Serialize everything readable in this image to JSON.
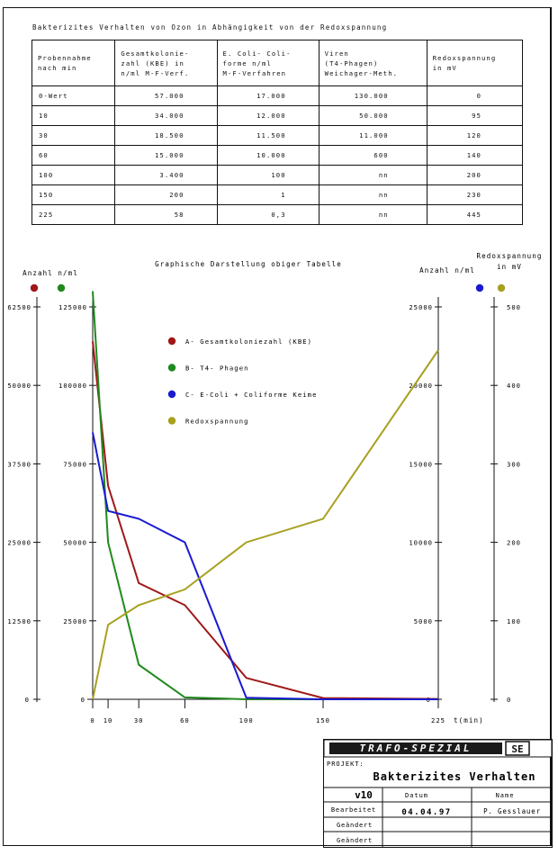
{
  "table": {
    "title": "Bakterizites Verhalten von Ozon in Abhängigkeit von der Redoxspannung",
    "headers": [
      [
        "Probennahme",
        "nach min"
      ],
      [
        "Gesamtkolonie-",
        "zahl (KBE) in",
        "n/ml M-F-Verf."
      ],
      [
        "E. Coli- Coli-",
        "forme n/ml",
        "M-F-Verfahren"
      ],
      [
        "Viren",
        "(T4-Phagen)",
        "Weichager-Meth."
      ],
      [
        "Redoxspannung",
        "in mV"
      ]
    ],
    "rows": [
      [
        "0-Wert",
        "57.000",
        "17.000",
        "130.000",
        "0"
      ],
      [
        "10",
        "34.000",
        "12.000",
        "50.000",
        "95"
      ],
      [
        "30",
        "18.500",
        "11.500",
        "11.000",
        "120"
      ],
      [
        "60",
        "15.000",
        "10.000",
        "600",
        "140"
      ],
      [
        "100",
        "3.400",
        "100",
        "nn",
        "200"
      ],
      [
        "150",
        "200",
        "1",
        "nn",
        "230"
      ],
      [
        "225",
        "58",
        "0,3",
        "nn",
        "445"
      ]
    ]
  },
  "chart": {
    "title": "Graphische Darstellung obiger Tabelle",
    "left_label": "Anzahl n/ml",
    "right_label": "Anzahl n/ml",
    "redox_label": [
      "Redoxspannung",
      "in mV"
    ],
    "x_unit": "t(min)",
    "x_ticks": [
      "0",
      "10",
      "30",
      "60",
      "100",
      "150",
      "225"
    ],
    "axis1_ticks": [
      "62500",
      "50000",
      "37500",
      "25000",
      "12500",
      "0"
    ],
    "axis2_ticks": [
      "125000",
      "100000",
      "75000",
      "50000",
      "25000",
      "0"
    ],
    "axis3_ticks": [
      "25000",
      "20000",
      "15000",
      "10000",
      "5000",
      "0"
    ],
    "axis4_ticks": [
      "500",
      "400",
      "300",
      "200",
      "100",
      "0"
    ],
    "legend": [
      {
        "label": "A- Gesamtkoloniezahl (KBE)",
        "color": "#a01818"
      },
      {
        "label": "B- T4- Phagen",
        "color": "#1e8a1e"
      },
      {
        "label": "C- E-Coli + Coliforme Keime",
        "color": "#1a1ad0"
      },
      {
        "label": "Redoxspannung",
        "color": "#a8a020"
      }
    ],
    "dot_colors": {
      "red": "#a01818",
      "green": "#1e8a1e",
      "blue": "#1a1ad0",
      "olive": "#a8a020"
    }
  },
  "chart_data": {
    "type": "line",
    "x": [
      0,
      10,
      30,
      60,
      100,
      150,
      225
    ],
    "xlabel": "t(min)",
    "series": [
      {
        "name": "A- Gesamtkoloniezahl (KBE)",
        "axis": "left-1",
        "ylim": [
          0,
          62500
        ],
        "values": [
          57000,
          34000,
          18500,
          15000,
          3400,
          200,
          58
        ]
      },
      {
        "name": "B- T4- Phagen",
        "axis": "left-2",
        "ylim": [
          0,
          125000
        ],
        "values": [
          130000,
          50000,
          11000,
          600,
          0,
          0,
          0
        ]
      },
      {
        "name": "C- E-Coli + Coliforme Keime",
        "axis": "right-1",
        "ylim": [
          0,
          25000
        ],
        "values": [
          17000,
          12000,
          11500,
          10000,
          100,
          1,
          0.3
        ]
      },
      {
        "name": "Redoxspannung",
        "axis": "right-2",
        "ylim": [
          0,
          500
        ],
        "values": [
          0,
          95,
          120,
          140,
          200,
          230,
          445
        ]
      }
    ]
  },
  "title_block": {
    "brand": "TRAFO-SPEZIAL",
    "logo": "SE",
    "projekt_label": "PROJEKT:",
    "projekt": "Bakterizites Verhalten",
    "version": "v10",
    "datum_label": "Datum",
    "name_label": "Name",
    "bearbeitet_label": "Bearbeitet",
    "datum": "04.04.97",
    "name": "P. Gesslauer",
    "geaendert1": "Geändert",
    "geaendert2": "Geändert"
  }
}
